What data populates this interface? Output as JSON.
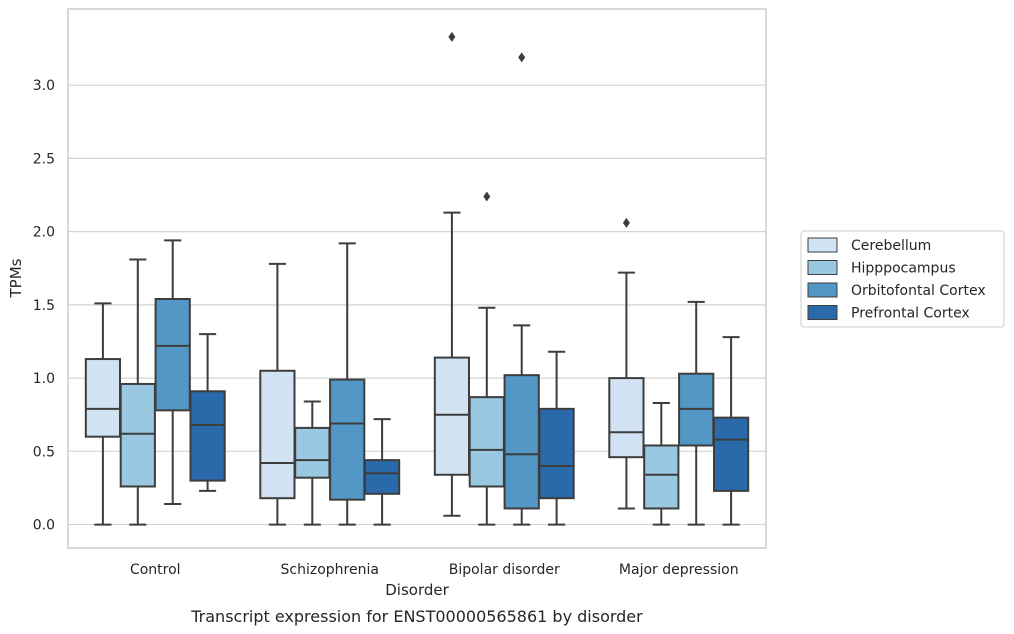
{
  "chart_data": {
    "type": "box",
    "caption": "Transcript expression for ENST00000565861 by disorder",
    "xlabel": "Disorder",
    "ylabel": "TPMs",
    "ylim": [
      -0.16,
      3.52
    ],
    "yticks": [
      "0.0",
      "0.5",
      "1.0",
      "1.5",
      "2.0",
      "2.5",
      "3.0"
    ],
    "grid": true,
    "legend_position": "right",
    "categories": [
      "Control",
      "Schizophrenia",
      "Bipolar disorder",
      "Major depression"
    ],
    "series": [
      {
        "name": "Cerebellum",
        "color": "#d1e2f2",
        "boxes": [
          {
            "whislo": 0.0,
            "q1": 0.6,
            "med": 0.79,
            "q3": 1.13,
            "whishi": 1.51,
            "fliers": []
          },
          {
            "whislo": 0.0,
            "q1": 0.18,
            "med": 0.42,
            "q3": 1.05,
            "whishi": 1.78,
            "fliers": []
          },
          {
            "whislo": 0.06,
            "q1": 0.34,
            "med": 0.75,
            "q3": 1.14,
            "whishi": 2.13,
            "fliers": [
              3.33
            ]
          },
          {
            "whislo": 0.11,
            "q1": 0.46,
            "med": 0.63,
            "q3": 1.0,
            "whishi": 1.72,
            "fliers": [
              2.06
            ]
          }
        ]
      },
      {
        "name": "Hipppocampus",
        "color": "#9ac8e0",
        "boxes": [
          {
            "whislo": 0.0,
            "q1": 0.26,
            "med": 0.62,
            "q3": 0.96,
            "whishi": 1.81,
            "fliers": []
          },
          {
            "whislo": 0.0,
            "q1": 0.32,
            "med": 0.44,
            "q3": 0.66,
            "whishi": 0.84,
            "fliers": []
          },
          {
            "whislo": 0.0,
            "q1": 0.26,
            "med": 0.51,
            "q3": 0.87,
            "whishi": 1.48,
            "fliers": [
              2.24
            ]
          },
          {
            "whislo": 0.0,
            "q1": 0.11,
            "med": 0.34,
            "q3": 0.54,
            "whishi": 0.83,
            "fliers": []
          }
        ]
      },
      {
        "name": "Orbitofontal Cortex",
        "color": "#5297c6",
        "boxes": [
          {
            "whislo": 0.14,
            "q1": 0.78,
            "med": 1.22,
            "q3": 1.54,
            "whishi": 1.94,
            "fliers": []
          },
          {
            "whislo": 0.0,
            "q1": 0.17,
            "med": 0.69,
            "q3": 0.99,
            "whishi": 1.92,
            "fliers": []
          },
          {
            "whislo": 0.0,
            "q1": 0.11,
            "med": 0.48,
            "q3": 1.02,
            "whishi": 1.36,
            "fliers": [
              3.19
            ]
          },
          {
            "whislo": 0.0,
            "q1": 0.54,
            "med": 0.79,
            "q3": 1.03,
            "whishi": 1.52,
            "fliers": []
          }
        ]
      },
      {
        "name": "Prefrontal Cortex",
        "color": "#2a6aab",
        "boxes": [
          {
            "whislo": 0.23,
            "q1": 0.3,
            "med": 0.68,
            "q3": 0.91,
            "whishi": 1.3,
            "fliers": []
          },
          {
            "whislo": 0.0,
            "q1": 0.21,
            "med": 0.35,
            "q3": 0.44,
            "whishi": 0.72,
            "fliers": []
          },
          {
            "whislo": 0.0,
            "q1": 0.18,
            "med": 0.4,
            "q3": 0.79,
            "whishi": 1.18,
            "fliers": []
          },
          {
            "whislo": 0.0,
            "q1": 0.23,
            "med": 0.58,
            "q3": 0.73,
            "whishi": 1.28,
            "fliers": []
          }
        ]
      }
    ]
  }
}
